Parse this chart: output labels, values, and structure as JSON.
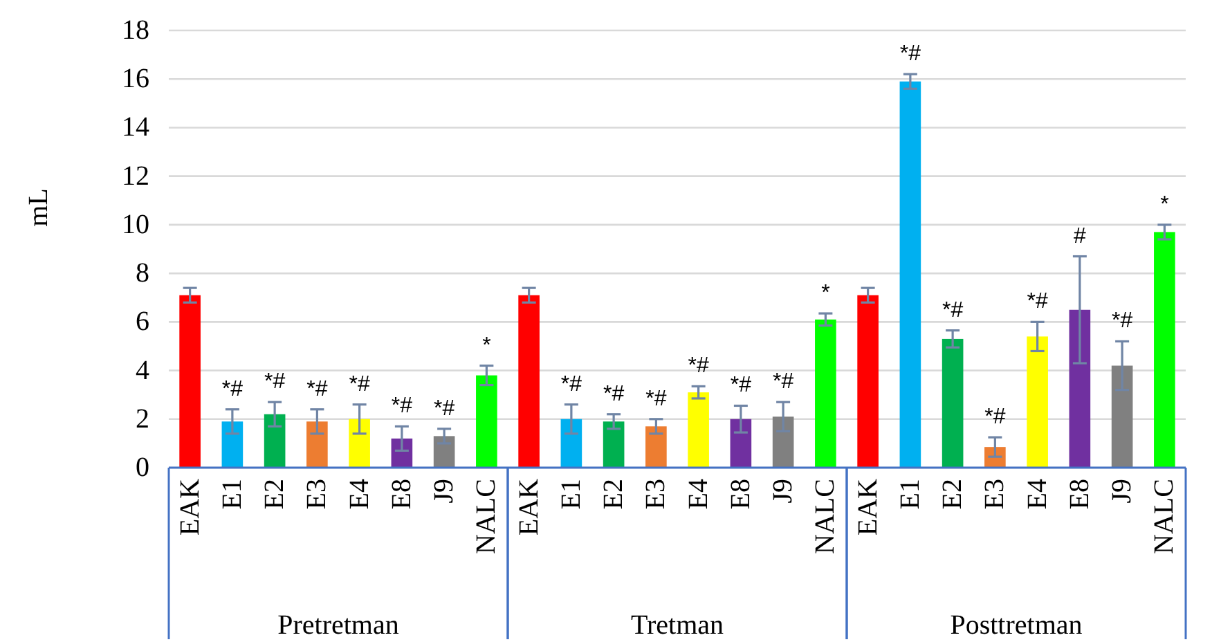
{
  "chart_data": [
    {
      "type": "bar",
      "ylabel": "mL",
      "xlabel": "Pretretman",
      "categories": [
        "EAK",
        "E1",
        "E2",
        "E3",
        "E4",
        "E8",
        "J9",
        "NALC"
      ],
      "values": [
        7.1,
        1.9,
        2.2,
        1.9,
        2.0,
        1.2,
        1.3,
        3.8
      ],
      "errors": [
        0.3,
        0.5,
        0.5,
        0.5,
        0.6,
        0.5,
        0.3,
        0.4
      ],
      "value_labels": [
        null,
        "*#",
        "*#",
        "*#",
        "*#",
        "*#",
        "*#",
        "*"
      ],
      "colors": [
        "#ff0000",
        "#00b0f0",
        "#00b050",
        "#ed7d31",
        "#ffff00",
        "#7030a0",
        "#808080",
        "#00ff00"
      ],
      "ylim": [
        0,
        18
      ],
      "yticks": [
        0,
        2,
        4,
        6,
        8,
        10,
        12,
        14,
        16,
        18
      ],
      "grid": "y"
    },
    {
      "type": "bar",
      "xlabel": "Tretman",
      "categories": [
        "EAK",
        "E1",
        "E2",
        "E3",
        "E4",
        "E8",
        "J9",
        "NALC"
      ],
      "values": [
        7.1,
        2.0,
        1.9,
        1.7,
        3.1,
        2.0,
        2.1,
        6.1
      ],
      "errors": [
        0.3,
        0.6,
        0.3,
        0.3,
        0.25,
        0.55,
        0.6,
        0.25
      ],
      "value_labels": [
        null,
        "*#",
        "*#",
        "*#",
        "*#",
        "*#",
        "*#",
        "*"
      ],
      "colors": [
        "#ff0000",
        "#00b0f0",
        "#00b050",
        "#ed7d31",
        "#ffff00",
        "#7030a0",
        "#808080",
        "#00ff00"
      ],
      "ylim": [
        0,
        18
      ],
      "yticks": [
        0,
        2,
        4,
        6,
        8,
        10,
        12,
        14,
        16,
        18
      ],
      "grid": "y",
      "tick_labels": "x"
    },
    {
      "type": "bar",
      "xlabel": "Posttretman",
      "categories": [
        "EAK",
        "E1",
        "E2",
        "E3",
        "E4",
        "E8",
        "J9",
        "NALC"
      ],
      "values": [
        7.1,
        15.9,
        5.3,
        0.85,
        5.4,
        6.5,
        4.2,
        9.7
      ],
      "errors": [
        0.3,
        0.3,
        0.35,
        0.4,
        0.6,
        2.2,
        1.0,
        0.3
      ],
      "value_labels": [
        null,
        "*#",
        "*#",
        "*#",
        "*#",
        "#",
        "*#",
        "*"
      ],
      "colors": [
        "#ff0000",
        "#00b0f0",
        "#00b050",
        "#ed7d31",
        "#ffff00",
        "#7030a0",
        "#808080",
        "#00ff00"
      ],
      "ylim": [
        0,
        18
      ],
      "yticks": [
        0,
        2,
        4,
        6,
        8,
        10,
        12,
        14,
        16,
        18
      ],
      "grid": "y",
      "tick_labels": "x"
    }
  ]
}
